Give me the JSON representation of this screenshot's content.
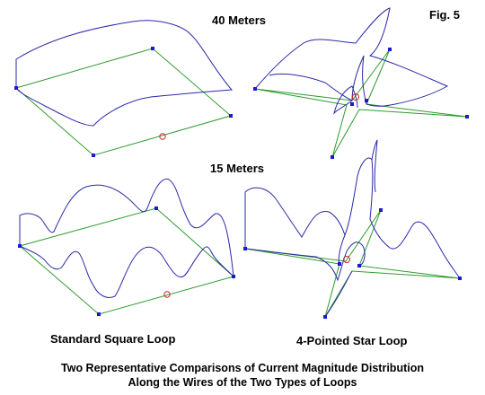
{
  "figure_label": "Fig. 5",
  "band_40": "40 Meters",
  "band_15": "15 Meters",
  "square_label": "Standard Square Loop",
  "star_label": "4-Pointed Star Loop",
  "caption_line1": "Two Representative Comparisons of Current Magnitude Distribution",
  "caption_line2": "Along the Wires of the Two Types of Loops",
  "colors": {
    "wire": "#2e9a2e",
    "current": "#2a2aa8",
    "node": "#1a1ad0",
    "feed": "#cc2a2a"
  }
}
